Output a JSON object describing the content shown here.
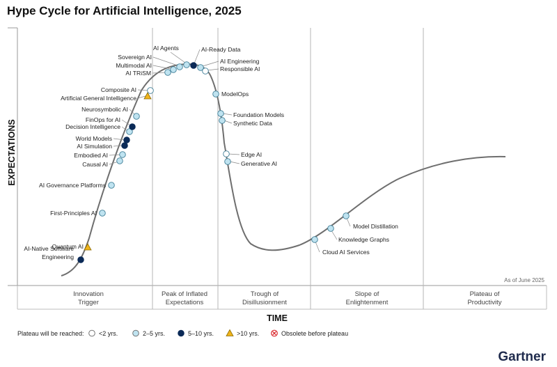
{
  "title": "Hype Cycle for Artificial Intelligence, 2025",
  "chart_data": {
    "type": "hype-cycle",
    "title": "Hype Cycle for Artificial Intelligence, 2025",
    "xlabel": "TIME",
    "ylabel": "EXPECTATIONS",
    "as_of": "As of June 2025",
    "brand": "Gartner",
    "phases": [
      {
        "label": [
          "Innovation",
          "Trigger"
        ]
      },
      {
        "label": [
          "Peak of Inflated",
          "Expectations"
        ]
      },
      {
        "label": [
          "Trough of",
          "Disillusionment"
        ]
      },
      {
        "label": [
          "Slope of",
          "Enlightenment"
        ]
      },
      {
        "label": [
          "Plateau of",
          "Productivity"
        ]
      }
    ],
    "legend_title": "Plateau will be reached:",
    "legend": [
      {
        "key": "lt2",
        "label": "<2 yrs.",
        "marker": "circle",
        "color": "#ffffff"
      },
      {
        "key": "2to5",
        "label": "2–5 yrs.",
        "marker": "circle",
        "color": "#bfe3f0"
      },
      {
        "key": "5to10",
        "label": "5–10 yrs.",
        "marker": "circle",
        "color": "#0b2a57"
      },
      {
        "key": "gt10",
        "label": ">10 yrs.",
        "marker": "triangle",
        "color": "#f0b41c"
      },
      {
        "key": "obsolete",
        "label": "Obsolete before plateau",
        "marker": "cross",
        "color": "#d9262b"
      }
    ],
    "technologies": [
      {
        "name": "AI-Native Software Engineering",
        "phase": "Innovation Trigger",
        "plateau": "5to10"
      },
      {
        "name": "Quantum AI",
        "phase": "Innovation Trigger",
        "plateau": "gt10"
      },
      {
        "name": "First-Principles AI",
        "phase": "Innovation Trigger",
        "plateau": "2to5"
      },
      {
        "name": "AI Governance Platforms",
        "phase": "Innovation Trigger",
        "plateau": "2to5"
      },
      {
        "name": "Causal AI",
        "phase": "Innovation Trigger",
        "plateau": "2to5"
      },
      {
        "name": "Embodied AI",
        "phase": "Innovation Trigger",
        "plateau": "2to5"
      },
      {
        "name": "AI Simulation",
        "phase": "Innovation Trigger",
        "plateau": "5to10"
      },
      {
        "name": "World Models",
        "phase": "Innovation Trigger",
        "plateau": "5to10"
      },
      {
        "name": "Decision Intelligence",
        "phase": "Innovation Trigger",
        "plateau": "2to5"
      },
      {
        "name": "FinOps for AI",
        "phase": "Innovation Trigger",
        "plateau": "5to10"
      },
      {
        "name": "Neurosymbolic AI",
        "phase": "Innovation Trigger",
        "plateau": "2to5"
      },
      {
        "name": "Artificial General Intelligence",
        "phase": "Innovation Trigger",
        "plateau": "gt10"
      },
      {
        "name": "Composite AI",
        "phase": "Innovation Trigger",
        "plateau": "lt2"
      },
      {
        "name": "AI TRiSM",
        "phase": "Peak of Inflated Expectations",
        "plateau": "2to5"
      },
      {
        "name": "Multimodal AI",
        "phase": "Peak of Inflated Expectations",
        "plateau": "2to5"
      },
      {
        "name": "Sovereign AI",
        "phase": "Peak of Inflated Expectations",
        "plateau": "2to5"
      },
      {
        "name": "AI Agents",
        "phase": "Peak of Inflated Expectations",
        "plateau": "2to5"
      },
      {
        "name": "AI-Ready Data",
        "phase": "Peak of Inflated Expectations",
        "plateau": "5to10"
      },
      {
        "name": "AI Engineering",
        "phase": "Peak of Inflated Expectations",
        "plateau": "2to5"
      },
      {
        "name": "Responsible AI",
        "phase": "Peak of Inflated Expectations",
        "plateau": "lt2"
      },
      {
        "name": "ModelOps",
        "phase": "Trough of Disillusionment",
        "plateau": "2to5"
      },
      {
        "name": "Foundation Models",
        "phase": "Trough of Disillusionment",
        "plateau": "2to5"
      },
      {
        "name": "Synthetic Data",
        "phase": "Trough of Disillusionment",
        "plateau": "2to5"
      },
      {
        "name": "Edge AI",
        "phase": "Trough of Disillusionment",
        "plateau": "lt2"
      },
      {
        "name": "Generative AI",
        "phase": "Trough of Disillusionment",
        "plateau": "2to5"
      },
      {
        "name": "Cloud AI Services",
        "phase": "Slope of Enlightenment",
        "plateau": "2to5"
      },
      {
        "name": "Knowledge Graphs",
        "phase": "Slope of Enlightenment",
        "plateau": "2to5"
      },
      {
        "name": "Model Distillation",
        "phase": "Slope of Enlightenment",
        "plateau": "2to5"
      }
    ]
  }
}
